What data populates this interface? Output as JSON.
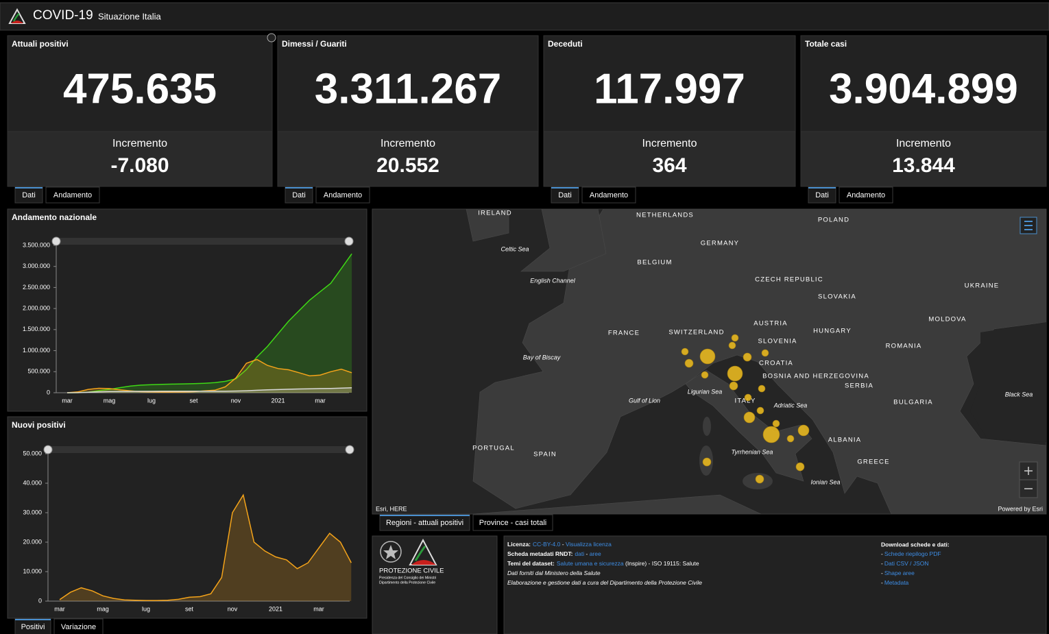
{
  "header": {
    "title": "COVID-19",
    "subtitle": "Situazione Italia"
  },
  "cards": [
    {
      "title": "Attuali positivi",
      "value": "475.635",
      "increment_label": "Incremento",
      "increment": "-7.080",
      "color": "#f5a41a",
      "tabs": [
        "Dati",
        "Andamento"
      ]
    },
    {
      "title": "Dimessi / Guariti",
      "value": "3.311.267",
      "increment_label": "Incremento",
      "increment": "20.552",
      "color": "#3ed915",
      "tabs": [
        "Dati",
        "Andamento"
      ]
    },
    {
      "title": "Deceduti",
      "value": "117.997",
      "increment_label": "Incremento",
      "increment": "364",
      "color": "#b4b4b4",
      "tabs": [
        "Dati",
        "Andamento"
      ]
    },
    {
      "title": "Totale casi",
      "value": "3.904.899",
      "increment_label": "Incremento",
      "increment": "13.844",
      "color": "#e8110f",
      "tabs": [
        "Dati",
        "Andamento"
      ]
    }
  ],
  "chart_data": [
    {
      "type": "line",
      "title": "Andamento nazionale",
      "categories": [
        "mar",
        null,
        null,
        null,
        "mag",
        null,
        null,
        null,
        "lug",
        null,
        null,
        null,
        "set",
        null,
        null,
        null,
        "nov",
        null,
        null,
        null,
        "2021",
        null,
        null,
        null,
        "mar",
        null,
        null,
        null
      ],
      "ylim": [
        0,
        3500000
      ],
      "yticks": [
        0,
        {
          "value": 500000,
          "label": "500.000"
        },
        {
          "value": 1000000,
          "label": "1.000.000"
        },
        {
          "value": 1500000,
          "label": "1.500.000"
        },
        {
          "value": 2000000,
          "label": "2.000.000"
        },
        {
          "value": 2500000,
          "label": "2.500.000"
        },
        {
          "value": 3000000,
          "label": "3.000.000"
        },
        {
          "value": 3500000,
          "label": "3.500.000"
        }
      ],
      "series": [
        {
          "color": "#3ed915",
          "values": [
            0,
            2000,
            15000,
            50000,
            80000,
            120000,
            160000,
            180000,
            190000,
            200000,
            205000,
            210000,
            215000,
            225000,
            240000,
            270000,
            330000,
            550000,
            850000,
            1100000,
            1400000,
            1700000,
            1950000,
            2200000,
            2400000,
            2600000,
            2950000,
            3300000
          ]
        },
        {
          "color": "#f5a41a",
          "values": [
            0,
            20000,
            80000,
            105000,
            100000,
            70000,
            45000,
            25000,
            18000,
            13000,
            12500,
            15000,
            25000,
            45000,
            60000,
            140000,
            350000,
            700000,
            790000,
            650000,
            575000,
            545000,
            475000,
            400000,
            420000,
            500000,
            560000,
            475000
          ]
        },
        {
          "color": "#d8d8d8",
          "values": [
            0,
            2000,
            12000,
            22000,
            28000,
            31000,
            33000,
            34500,
            35000,
            35100,
            35200,
            35400,
            35500,
            36000,
            36500,
            37500,
            40000,
            48000,
            58000,
            68000,
            75000,
            83000,
            89000,
            94000,
            99000,
            103000,
            111000,
            118000
          ]
        }
      ]
    },
    {
      "type": "line",
      "title": "Nuovi positivi",
      "categories": [
        "mar",
        null,
        null,
        null,
        "mag",
        null,
        null,
        null,
        "lug",
        null,
        null,
        null,
        "set",
        null,
        null,
        null,
        "nov",
        null,
        null,
        null,
        "2021",
        null,
        null,
        null,
        "mar",
        null,
        null,
        null
      ],
      "ylim": [
        0,
        50000
      ],
      "yticks": [
        0,
        {
          "value": 10000,
          "label": "10.000"
        },
        {
          "value": 20000,
          "label": "20.000"
        },
        {
          "value": 30000,
          "label": "30.000"
        },
        {
          "value": 40000,
          "label": "40.000"
        },
        {
          "value": 50000,
          "label": "50.000"
        }
      ],
      "series": [
        {
          "color": "#f5a41a",
          "values": [
            500,
            3000,
            4500,
            3500,
            1800,
            900,
            400,
            300,
            200,
            200,
            300,
            600,
            1300,
            1500,
            2500,
            8000,
            30000,
            36000,
            20000,
            17000,
            15000,
            14000,
            11000,
            13000,
            18000,
            23000,
            20000,
            13000
          ]
        }
      ]
    }
  ],
  "chart_tabs": [
    "Positivi",
    "Variazione"
  ],
  "map": {
    "labels": [
      "IRELAND",
      "NETHERLANDS",
      "POLAND",
      "Celtic Sea",
      "GERMANY",
      "BELGIUM",
      "English Channel",
      "CZECH REPUBLIC",
      "UKRAINE",
      "SLOVAKIA",
      "AUSTRIA",
      "MOLDOVA",
      "HUNGARY",
      "FRANCE",
      "SWITZERLAND",
      "SLOVENIA",
      "CROATIA",
      "ROMANIA",
      "Bay of Biscay",
      "BOSNIA AND HERZEGOVINA",
      "SERBIA",
      "Ligurian Sea",
      "ITALY",
      "Gulf of Lion",
      "Adriatic Sea",
      "Black Sea",
      "BULGARIA",
      "PORTUGAL",
      "SPAIN",
      "ALBANIA",
      "Tyrrhenian Sea",
      "GREECE",
      "Ionian Sea"
    ],
    "attribution": "Esri, HERE",
    "powered": "Powered by Esri",
    "tabs": [
      "Regioni - attuali positivi",
      "Province - casi totali"
    ]
  },
  "logo": {
    "name": "PROTEZIONE CIVILE",
    "lines": [
      "Presidenza del Consiglio dei Ministri",
      "Dipartimento della Protezione Civile"
    ]
  },
  "info": {
    "lines": [
      [
        {
          "text": "Licenza:",
          "bold": true
        },
        {
          "text": "CC-BY-4.0",
          "link": true
        },
        {
          "text": " - "
        },
        {
          "text": "Visualizza licenza",
          "link": true
        }
      ],
      [
        {
          "text": "Scheda metadati RNDT:",
          "bold": true
        },
        {
          "text": "dati",
          "link": true
        },
        {
          "text": " - "
        },
        {
          "text": "aree",
          "link": true
        }
      ],
      [
        {
          "text": "Temi del dataset:",
          "bold": true
        },
        {
          "text": "Salute umana e sicurezza",
          "link": true
        },
        {
          "text": " (Inspire) - ISO 19115: Salute"
        }
      ],
      [
        {
          "text": "Dati forniti dal Ministero della Salute",
          "italic": true
        }
      ],
      [
        {
          "text": "Elaborazione e gestione dati a cura del Dipartimento della Protezione Civile",
          "italic": true
        }
      ]
    ],
    "download_title": "Download schede e dati:",
    "download_prefix": "-",
    "downloads": [
      "Schede riepilogo PDF",
      "Dati CSV / JSON",
      "Shape aree",
      "Metadata"
    ]
  }
}
